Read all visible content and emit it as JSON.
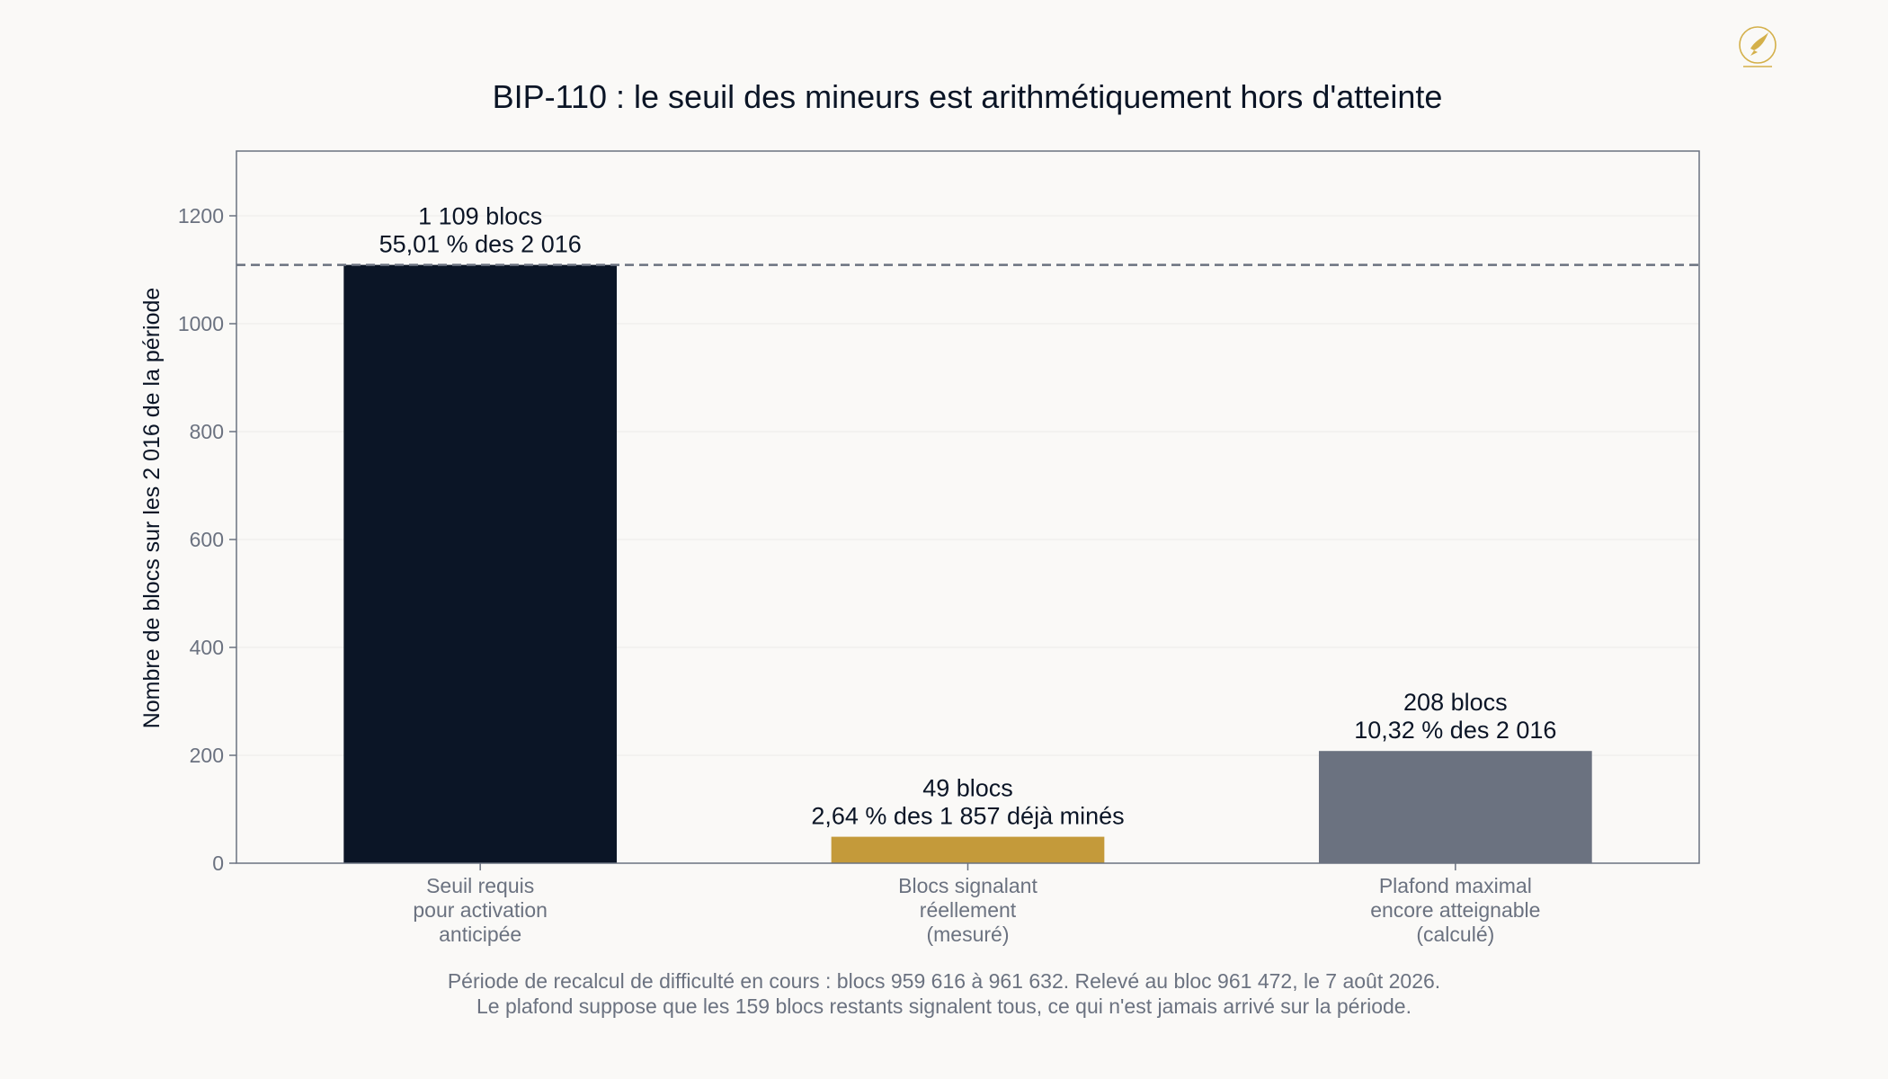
{
  "chart_data": {
    "type": "bar",
    "title": "BIP-110 : le seuil des mineurs est arithmétiquement hors d'atteinte",
    "ylabel": "Nombre de blocs sur les 2 016 de la période",
    "xlabel": "",
    "ylim": [
      0,
      1320
    ],
    "yticks": [
      0,
      200,
      400,
      600,
      800,
      1000,
      1200
    ],
    "categories": [
      [
        "Seuil requis",
        "pour activation",
        "anticipée"
      ],
      [
        "Blocs signalant",
        "réellement",
        "(mesuré)"
      ],
      [
        "Plafond maximal",
        "encore atteignable",
        "(calculé)"
      ]
    ],
    "values": [
      1109,
      49,
      208
    ],
    "colors": [
      "#0b1526",
      "#c49a3a",
      "#6b7280"
    ],
    "data_labels": [
      [
        "1 109 blocs",
        "55,01 % des 2 016"
      ],
      [
        "49 blocs",
        "2,64 % des 1 857 déjà minés"
      ],
      [
        "208 blocs",
        "10,32 % des 2 016"
      ]
    ],
    "reference_line": {
      "value": 1109,
      "style": "dashed",
      "color": "#6b7280"
    },
    "grid": true,
    "legend": "none"
  },
  "footnote": {
    "line1": "Période de recalcul de difficulté en cours : blocs 959 616 à 961 632. Relevé au bloc 961 472, le 7 août 2026.",
    "line2": "Le plafond suppose que les 159 blocs restants signalent tous, ce qui n'est jamais arrivé sur la période."
  },
  "logo": {
    "icon": "bird-logo-icon",
    "color": "#d4b04a"
  }
}
